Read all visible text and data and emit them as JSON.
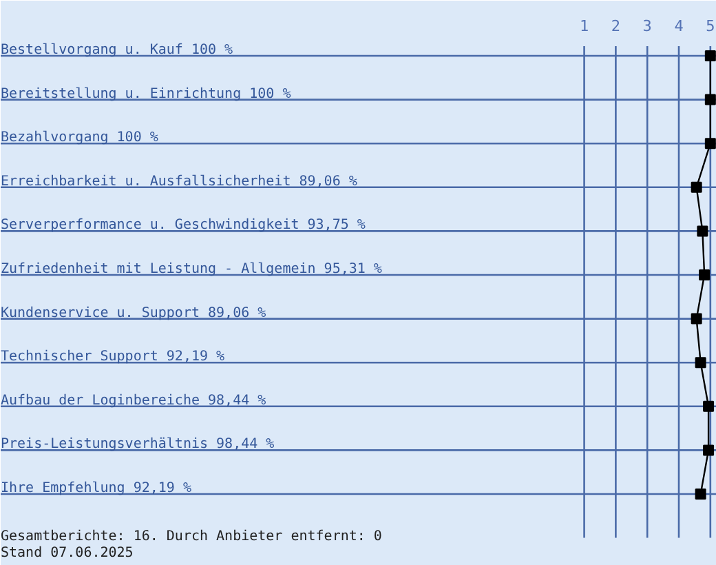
{
  "chart_data": {
    "type": "line",
    "orientation": "horizontal",
    "categories": [
      "Bestellvorgang u. Kauf 100 %",
      "Bereitstellung u. Einrichtung 100 %",
      "Bezahlvorgang 100 %",
      "Erreichbarkeit u. Ausfallsicherheit 89,06 %",
      "Serverperformance u. Geschwindigkeit 93,75 %",
      "Zufriedenheit mit Leistung - Allgemein 95,31 %",
      "Kundenservice u. Support 89,06 %",
      "Technischer Support 92,19 %",
      "Aufbau der Loginbereiche 98,44 %",
      "Preis-Leistungsverhältnis 98,44 %",
      "Ihre Empfehlung 92,19 %"
    ],
    "values": [
      5,
      5,
      5,
      4.56,
      4.75,
      4.81,
      4.56,
      4.69,
      4.94,
      4.94,
      4.69
    ],
    "color": "#000000",
    "marker": "square",
    "line_style": "solid",
    "xlim": [
      -17.5,
      5.2
    ],
    "xticks": [
      1,
      2,
      3,
      4,
      5
    ],
    "grid": true,
    "annotations": [
      "Gesamtberichte: 16. Durch Anbieter entfernt: 0",
      "Stand 07.06.2025"
    ]
  }
}
